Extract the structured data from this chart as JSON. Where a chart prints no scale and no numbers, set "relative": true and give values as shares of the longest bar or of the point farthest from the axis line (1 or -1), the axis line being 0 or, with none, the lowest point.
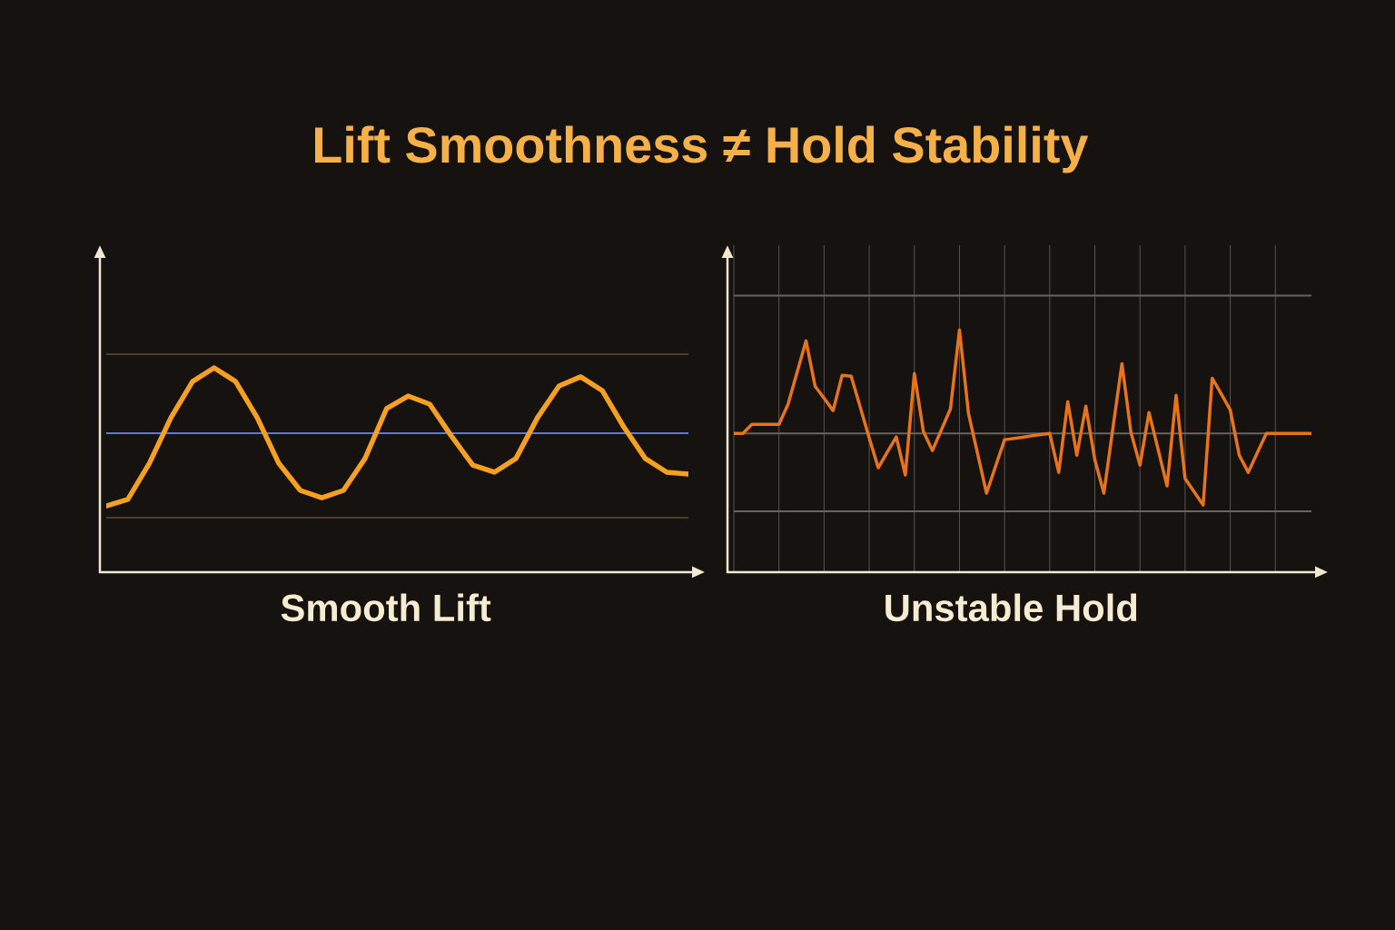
{
  "chart_data": [
    {
      "type": "line",
      "title": "Lift Smoothness ≠ Hold Stability",
      "xlabel": "Smooth Lift",
      "relative": true,
      "categories": [
        null,
        null,
        null,
        null,
        null,
        null,
        null,
        null,
        null,
        null,
        null,
        null,
        null,
        null,
        null,
        null,
        null,
        null,
        null,
        null,
        null,
        null,
        null,
        null,
        null,
        null,
        null,
        null
      ],
      "series": [
        {
          "color": "#f5a020",
          "values": [
            0.324,
            0.356,
            0.533,
            0.756,
            0.933,
            1.0,
            0.933,
            0.756,
            0.533,
            0.4,
            0.364,
            0.4,
            0.556,
            0.8,
            0.862,
            0.822,
            0.667,
            0.524,
            0.489,
            0.556,
            0.756,
            0.911,
            0.956,
            0.889,
            0.711,
            0.556,
            0.489,
            0.48
          ]
        }
      ],
      "ref_lines": [
        {
          "axis": "y",
          "value": 0.68,
          "color": "#5a78e0"
        },
        {
          "axis": "y",
          "value": 1.067,
          "color": "#4a3a30"
        },
        {
          "axis": "y",
          "value": 0.267,
          "color": "#4a3a30"
        }
      ]
    },
    {
      "type": "line",
      "xlabel": "Unstable Hold",
      "relative": true,
      "grid": "x",
      "categories": [
        null,
        null,
        null,
        null,
        null,
        null,
        null,
        null,
        null,
        null,
        null,
        null,
        null,
        null,
        null,
        null,
        null,
        null,
        null,
        null,
        null,
        null,
        null,
        null,
        null,
        null,
        null,
        null,
        null,
        null,
        null,
        null,
        null,
        null,
        null,
        null,
        null,
        null,
        null,
        null,
        null,
        null,
        null,
        null,
        null,
        null,
        null,
        null,
        null,
        null,
        null,
        null,
        null,
        null,
        null,
        null,
        null,
        null,
        null,
        null,
        null,
        null,
        null,
        null,
        null
      ],
      "series": [
        {
          "color": "#e8741a",
          "values": [
            0.573,
            0.573,
            0.61,
            0.61,
            0.61,
            0.61,
            0.693,
            0.824,
            0.955,
            0.768,
            0.718,
            0.667,
            0.813,
            0.809,
            0.682,
            0.554,
            0.431,
            0.495,
            0.558,
            0.401,
            0.82,
            0.581,
            0.502,
            0.588,
            0.674,
            1.0,
            0.655,
            0.491,
            0.326,
            0.437,
            0.547,
            0.552,
            0.557,
            0.563,
            0.568,
            0.573,
            0.412,
            0.704,
            0.483,
            0.685,
            0.464,
            0.326,
            0.594,
            0.861,
            0.577,
            0.442,
            0.659,
            0.508,
            0.356,
            0.73,
            0.386,
            0.332,
            0.277,
            0.801,
            0.736,
            0.67,
            0.483,
            0.412,
            0.493,
            0.573,
            0.573,
            0.573,
            0.573,
            0.573,
            0.573
          ]
        }
      ],
      "ref_lines": [
        {
          "axis": "y",
          "value": 1.142,
          "color": "#6a6460"
        },
        {
          "axis": "y",
          "value": 0.573,
          "color": "#6a6460"
        },
        {
          "axis": "y",
          "value": 0.251,
          "color": "#6a6460"
        }
      ]
    }
  ]
}
